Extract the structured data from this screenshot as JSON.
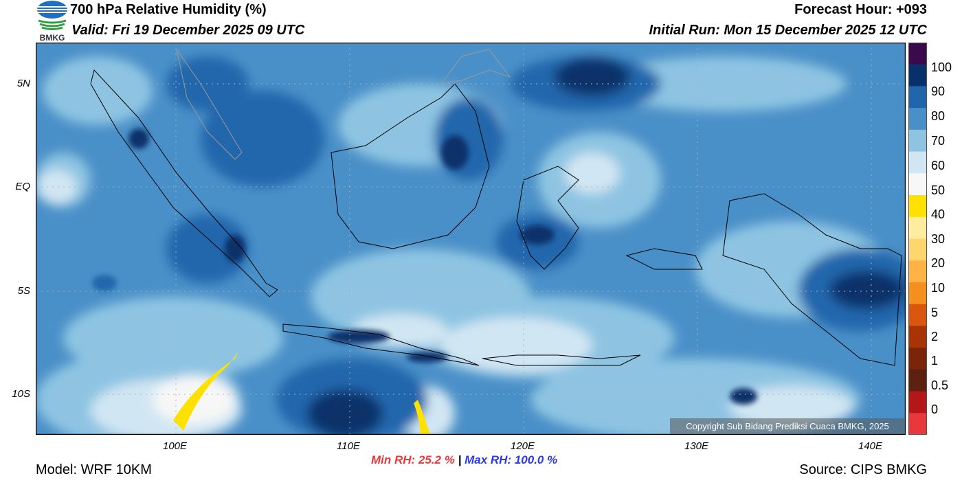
{
  "header": {
    "title": "700 hPa Relative Humidity (%)",
    "valid": "Valid: Fri 19 December 2025 09 UTC",
    "forecast_hour": "Forecast Hour: +093",
    "initial_run": "Initial Run: Mon 15 December 2025 12 UTC"
  },
  "logo": {
    "text": "BMKG",
    "icon": "bmkg-logo-icon"
  },
  "axes": {
    "lat_labels": [
      "5N",
      "EQ",
      "5S",
      "10S"
    ],
    "lon_labels": [
      "100E",
      "110E",
      "120E",
      "130E",
      "140E"
    ]
  },
  "colorbar": {
    "labels": [
      "100",
      "90",
      "80",
      "70",
      "60",
      "50",
      "40",
      "30",
      "20",
      "10",
      "5",
      "2",
      "1",
      "0.5",
      "0"
    ],
    "colors": [
      "#3a0a4d",
      "#08306b",
      "#2166ac",
      "#4a90c8",
      "#8ec4e2",
      "#d1e6f3",
      "#f7f7f7",
      "#ffe100",
      "#ffec9e",
      "#ffd66e",
      "#ffb347",
      "#f5901e",
      "#d9560f",
      "#a83405",
      "#7a2408",
      "#5c2110",
      "#b31717",
      "#e8383a"
    ]
  },
  "copyright": "Copyright Sub Bidang Prediksi Cuaca BMKG, 2025",
  "stats": {
    "min_label": "Min RH:  25.2 %",
    "separator": "|",
    "max_label": "Max RH: 100.0 %"
  },
  "footer": {
    "model": "Model: WRF 10KM",
    "source": "Source: CIPS BMKG"
  }
}
